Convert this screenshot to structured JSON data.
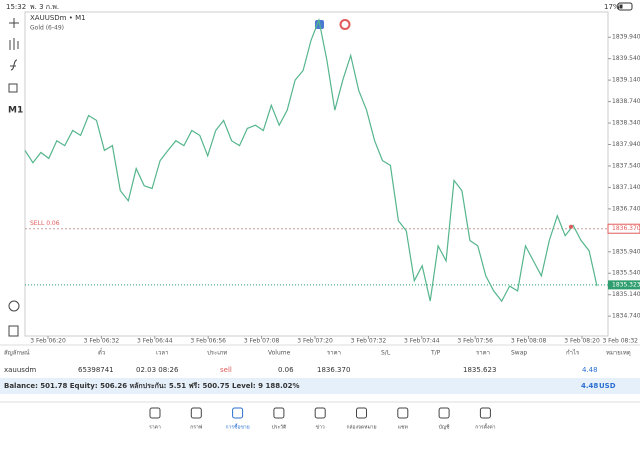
{
  "status_bar": {
    "time": "15:32",
    "date": "พ. 3 ก.พ.",
    "battery": "17%"
  },
  "toolbar": {
    "timeframe": "M1"
  },
  "chart": {
    "type": "line",
    "symbol": "XAUUSDm • M1",
    "description": "Gold (6-49)",
    "color": "#55b58c",
    "xticks": [
      "3 Feb 06:20",
      "3 Feb 06:32",
      "3 Feb 06:44",
      "3 Feb 06:56",
      "3 Feb 07:08",
      "3 Feb 07:20",
      "3 Feb 07:32",
      "3 Feb 07:44",
      "3 Feb 07:56",
      "3 Feb 08:08",
      "3 Feb 08:20",
      "3 Feb 08:32"
    ],
    "values": [
      1837.83,
      1837.6,
      1837.79,
      1837.68,
      1838.01,
      1837.92,
      1838.2,
      1838.11,
      1838.48,
      1838.39,
      1837.83,
      1837.92,
      1837.08,
      1836.89,
      1837.49,
      1837.17,
      1837.12,
      1837.64,
      1837.83,
      1838.01,
      1837.92,
      1838.2,
      1838.11,
      1837.73,
      1838.2,
      1838.39,
      1838.01,
      1837.92,
      1838.24,
      1838.3,
      1838.2,
      1838.67,
      1838.3,
      1838.58,
      1839.14,
      1839.32,
      1839.88,
      1840.26,
      1839.51,
      1838.58,
      1839.14,
      1839.6,
      1838.95,
      1838.58,
      1838.01,
      1837.64,
      1837.55,
      1836.52,
      1836.33,
      1835.4,
      1835.68,
      1835.02,
      1836.05,
      1835.77,
      1837.27,
      1837.08,
      1836.15,
      1836.05,
      1835.49,
      1835.21,
      1835.02,
      1835.3,
      1835.21,
      1836.05,
      1835.77,
      1835.49,
      1836.15,
      1836.61,
      1836.24,
      1836.43,
      1836.15,
      1835.96,
      1835.3
    ],
    "ylim": [
      1834.37,
      1840.41
    ],
    "yticks": [
      {
        "value": 1839.94,
        "label": "1839.940"
      },
      {
        "value": 1839.54,
        "label": "1839.540"
      },
      {
        "value": 1839.14,
        "label": "1839.140"
      },
      {
        "value": 1838.74,
        "label": "1838.740"
      },
      {
        "value": 1838.34,
        "label": "1838.340"
      },
      {
        "value": 1837.94,
        "label": "1837.940"
      },
      {
        "value": 1837.54,
        "label": "1837.540"
      },
      {
        "value": 1837.14,
        "label": "1837.140"
      },
      {
        "value": 1836.74,
        "label": "1836.740"
      },
      {
        "value": 1835.94,
        "label": "1835.940"
      },
      {
        "value": 1835.54,
        "label": "1835.540"
      },
      {
        "value": 1835.14,
        "label": "1835.140"
      },
      {
        "value": 1834.74,
        "label": "1834.740"
      }
    ],
    "order_line": {
      "label": "SELL 0.06",
      "price": {
        "value": 1836.37,
        "label": "1836.370"
      },
      "color": "#e05a5a"
    },
    "bid_line": {
      "price": {
        "value": 1835.323,
        "label": "1835.323"
      },
      "color": "#2e9e6e"
    }
  },
  "positions": {
    "headers": [
      "สัญลักษณ์",
      "ตั๋ว",
      "เวลา",
      "ประเภท",
      "Volume",
      "ราคา",
      "S/L",
      "T/P",
      "ราคา",
      "Swap",
      "กำไร",
      "หมายเหตุ"
    ],
    "row": [
      "xauusdm",
      "65398741",
      "02.03 08:26",
      "sell",
      "0.06",
      "1836.370",
      "1835.623",
      "4.48"
    ]
  },
  "summary": {
    "text": "Balance: 501.78 Equity: 506.26 หลักประกัน: 5.51 ฟรี: 500.75 Level: 9 188.02%",
    "profit": "4.48",
    "currency": "USD"
  },
  "nav": [
    "ราคา",
    "กราฟ",
    "การซื้อขาย",
    "ประวัติ",
    "ข่าว",
    "กล่องจดหมาย",
    "แชท",
    "บัญชี",
    "การตั้งค่า"
  ]
}
